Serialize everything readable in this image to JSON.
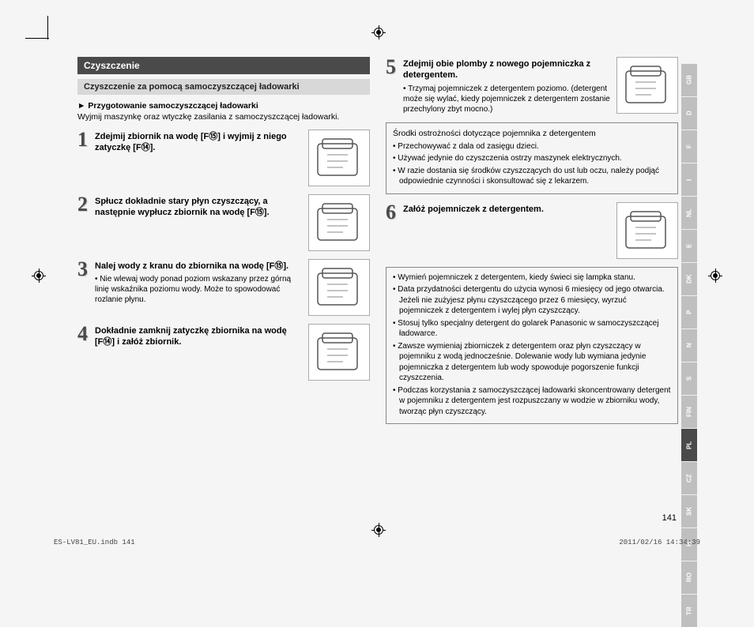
{
  "section_header": "Czyszczenie",
  "subsection_header": "Czyszczenie za pomocą samoczyszczącej ładowarki",
  "intro_heading": "Przygotowanie samoczyszczącej ładowarki",
  "intro_text": "Wyjmij maszynkę oraz wtyczkę zasilania z samoczyszczącej ładowarki.",
  "steps_left": [
    {
      "num": "1",
      "title": "Zdejmij zbiornik na wodę [F⑮] i wyjmij z niego zatyczkę [F⑭].",
      "note": ""
    },
    {
      "num": "2",
      "title": "Spłucz dokładnie stary płyn czyszczący, a następnie wypłucz zbiornik na wodę [F⑮].",
      "note": ""
    },
    {
      "num": "3",
      "title": "Nalej wody z kranu do zbiornika na wodę [F⑮].",
      "note": "• Nie wlewaj wody ponad poziom wskazany przez górną linię wskaźnika poziomu wody. Może to spowodować rozlanie płynu."
    },
    {
      "num": "4",
      "title": "Dokładnie zamknij zatyczkę zbiornika na wodę [F⑭] i załóż zbiornik.",
      "note": ""
    }
  ],
  "steps_right": [
    {
      "num": "5",
      "title": "Zdejmij obie plomby z nowego pojemniczka z detergentem.",
      "note": "• Trzymaj pojemniczek z detergentem poziomo. (detergent może się wylać, kiedy pojemniczek z detergentem zostanie przechylony zbyt mocno.)"
    },
    {
      "num": "6",
      "title": "Załóż pojemniczek z detergentem.",
      "note": ""
    }
  ],
  "warning_box": {
    "title": "Środki ostrożności dotyczące pojemnika z detergentem",
    "items": [
      "Przechowywać z dala od zasięgu dzieci.",
      "Używać jedynie do czyszczenia ostrzy maszynek elektrycznych.",
      "W razie dostania się środków czyszczących do ust lub oczu, należy podjąć odpowiednie czynności i skonsultować się z lekarzem."
    ]
  },
  "info_box": {
    "items": [
      "Wymień pojemniczek z detergentem, kiedy świeci się lampka stanu.",
      "Data przydatności detergentu do użycia wynosi 6 miesięcy od jego otwarcia. Jeżeli nie zużyjesz płynu czyszczącego przez 6 miesięcy, wyrzuć pojemniczek z detergentem i wylej płyn czyszczący.",
      "Stosuj tylko specjalny detergent do golarek Panasonic w samoczyszczącej ładowarce.",
      "Zawsze wymieniaj zbiorniczek z detergentem oraz płyn czyszczący w pojemniku z wodą jednocześnie. Dolewanie wody lub wymiana jedynie pojemniczka z detergentem lub wody spowoduje pogorszenie funkcji czyszczenia.",
      "Podczas korzystania z samoczyszczącej ładowarki skoncentrowany detergent w pojemniku z detergentem jest rozpuszczany w wodzie w zbiorniku wody, tworząc płyn czyszczący."
    ]
  },
  "lang_tabs": [
    "GB",
    "D",
    "F",
    "I",
    "NL",
    "E",
    "DK",
    "P",
    "N",
    "S",
    "FIN",
    "PL",
    "CZ",
    "SK",
    "H",
    "RO",
    "TR"
  ],
  "active_lang": "PL",
  "page_number": "141",
  "footer_left": "ES-LV81_EU.indb   141",
  "footer_right": "2011/02/16   14:34:39",
  "colors": {
    "header_bg": "#4a4a4a",
    "subheader_bg": "#d8d8d8",
    "tab_bg": "#bfbfbf",
    "tab_active_bg": "#4a4a4a",
    "page_bg": "#f5f5f5"
  }
}
